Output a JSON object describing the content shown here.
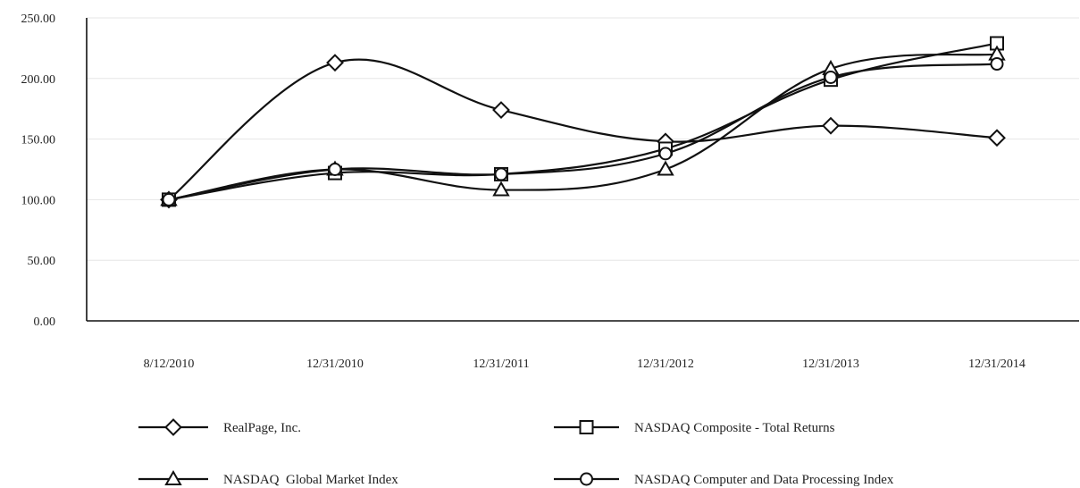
{
  "chart_data": {
    "type": "line",
    "title": "",
    "xlabel": "",
    "ylabel": "",
    "categories": [
      "8/12/2010",
      "12/31/2010",
      "12/31/2011",
      "12/31/2012",
      "12/31/2013",
      "12/31/2014"
    ],
    "y_ticks": [
      "0.00",
      "50.00",
      "100.00",
      "150.00",
      "200.00",
      "250.00"
    ],
    "ylim": [
      0,
      250
    ],
    "grid": true,
    "legend_position": "bottom",
    "series": [
      {
        "name": "RealPage, Inc.",
        "marker": "diamond",
        "values": [
          100.0,
          213.0,
          174.0,
          148.0,
          161.0,
          151.0
        ]
      },
      {
        "name": "NASDAQ Composite - Total Returns",
        "marker": "square",
        "values": [
          100.0,
          122.0,
          121.0,
          142.0,
          199.0,
          229.0
        ]
      },
      {
        "name": "NASDAQ  Global Market Index",
        "marker": "triangle",
        "values": [
          100.0,
          125.0,
          108.0,
          125.0,
          208.0,
          220.0
        ]
      },
      {
        "name": "NASDAQ Computer and Data Processing Index",
        "marker": "circle",
        "values": [
          100.0,
          125.0,
          121.0,
          138.0,
          201.0,
          212.0
        ]
      }
    ]
  },
  "colors": {
    "line": "#111111",
    "marker_fill": "#ffffff",
    "grid": "#e6e6e6",
    "text": "#222222"
  }
}
